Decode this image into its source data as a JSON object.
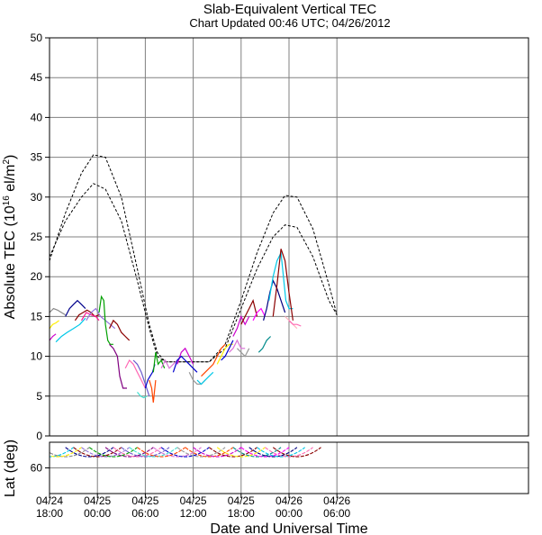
{
  "chart_data": {
    "type": "line",
    "title": "Slab-Equivalent Vertical TEC",
    "subtitle": "Chart Updated 00:46 UTC; 04/26/2012",
    "xlabel": "Date and Universal Time",
    "ylabel_main": "Absolute TEC (10",
    "ylabel_exp": "16",
    "ylabel_unit": " el/m",
    "ylabel_sq": "2",
    "ylabel_close": ")",
    "ylabel_lat": "Lat (deg)",
    "x_unit": "hours since 04/24 18:00",
    "xlim": [
      0,
      60
    ],
    "ylim": [
      0,
      50
    ],
    "yticks": [
      0,
      5,
      10,
      15,
      20,
      25,
      30,
      35,
      40,
      45,
      50
    ],
    "xticks": [
      {
        "x": 0,
        "date": "04/24",
        "time": "18:00"
      },
      {
        "x": 6,
        "date": "04/25",
        "time": "00:00"
      },
      {
        "x": 12,
        "date": "04/25",
        "time": "06:00"
      },
      {
        "x": 18,
        "date": "04/25",
        "time": "12:00"
      },
      {
        "x": 24,
        "date": "04/25",
        "time": "18:00"
      },
      {
        "x": 30,
        "date": "04/26",
        "time": "00:00"
      },
      {
        "x": 36,
        "date": "04/26",
        "time": "06:00"
      }
    ],
    "lat_ylim": [
      70,
      50
    ],
    "lat_yticks": [
      60
    ],
    "grid": true,
    "model_curves": [
      {
        "style": "dashed",
        "x": [
          0,
          2,
          4,
          5.5,
          7,
          9,
          11,
          12.5,
          13.5,
          14.5,
          16,
          18,
          19.5,
          20,
          22,
          24,
          26,
          28,
          29.5,
          31,
          33,
          35,
          36
        ],
        "y": [
          22,
          28,
          33,
          35.3,
          35,
          30,
          21,
          14,
          10.5,
          9.3,
          9.3,
          9.3,
          9.3,
          9.3,
          11.5,
          17,
          23,
          28,
          30.2,
          30,
          26,
          19,
          15.2
        ]
      },
      {
        "style": "dashed",
        "x": [
          0,
          2,
          4,
          5.5,
          7,
          9,
          11,
          12.5,
          13.5,
          14.5,
          16,
          18,
          19.5,
          20,
          22,
          24,
          26,
          28,
          29.5,
          31,
          33,
          35,
          36
        ],
        "y": [
          22.5,
          27,
          30,
          31.7,
          31,
          27,
          19.5,
          13.5,
          10,
          9.3,
          9.3,
          9.3,
          9.3,
          9.3,
          11,
          16,
          21,
          25,
          26.5,
          26.2,
          22.5,
          17,
          15.2
        ]
      }
    ],
    "series": [
      {
        "color": "#888888",
        "x": [
          0,
          0.5,
          1,
          1.5,
          2
        ],
        "y": [
          15.5,
          16,
          15.8,
          15.5,
          15.2
        ]
      },
      {
        "color": "#ffee00",
        "x": [
          0,
          0.4,
          0.8,
          1.2
        ],
        "y": [
          13.5,
          14,
          14.2,
          14.5
        ]
      },
      {
        "color": "#cc00cc",
        "x": [
          0,
          0.4,
          0.8
        ],
        "y": [
          12,
          12.5,
          12.8
        ]
      },
      {
        "color": "#00c8e8",
        "x": [
          0.8,
          1.5,
          2.2,
          3,
          3.8,
          4.5
        ],
        "y": [
          11.8,
          12.5,
          13,
          13.5,
          14,
          14.8
        ]
      },
      {
        "color": "#00008b",
        "x": [
          2,
          2.5,
          3,
          3.5,
          4,
          4.5
        ],
        "y": [
          15,
          16,
          16.5,
          17,
          16.5,
          16
        ]
      },
      {
        "color": "#8b0000",
        "x": [
          3.2,
          3.7,
          4.2,
          4.7,
          5.2,
          5.7,
          6.2
        ],
        "y": [
          14.5,
          15.2,
          15.5,
          15.8,
          15.5,
          15,
          15.2
        ]
      },
      {
        "color": "#ff1493",
        "x": [
          4,
          4.6,
          5.2,
          5.8,
          6.2
        ],
        "y": [
          14.5,
          15.5,
          15.2,
          15,
          14.5
        ]
      },
      {
        "color": "#9370db",
        "x": [
          4.6,
          5.2,
          5.8,
          6.4,
          7,
          7.6,
          8.2
        ],
        "y": [
          14.5,
          15.5,
          16,
          15,
          14.5,
          14,
          13.5
        ]
      },
      {
        "color": "#00a000",
        "x": [
          6.2,
          6.5,
          6.8,
          7,
          7.3,
          7.6,
          8
        ],
        "y": [
          15.5,
          17.5,
          17,
          14,
          12,
          11.5,
          11.5
        ]
      },
      {
        "color": "#8b0000",
        "x": [
          7.5,
          8,
          8.5,
          9,
          9.5,
          10
        ],
        "y": [
          13.5,
          14.5,
          14,
          13,
          12.5,
          12
        ]
      },
      {
        "color": "#800080",
        "x": [
          7.5,
          8,
          8.5,
          8.8,
          9.2,
          9.7
        ],
        "y": [
          11.5,
          11,
          10,
          7.5,
          6,
          6
        ]
      },
      {
        "color": "#ff69b4",
        "x": [
          9.5,
          10,
          10.5,
          11,
          11.5,
          12
        ],
        "y": [
          8.5,
          9.5,
          9,
          8,
          7,
          6
        ]
      },
      {
        "color": "#6a5acd",
        "x": [
          10.5,
          11,
          11.5,
          12,
          12.5
        ],
        "y": [
          9.5,
          9,
          8,
          6.5,
          5
        ]
      },
      {
        "color": "#40e0d0",
        "x": [
          11,
          11.4,
          11.8,
          12.2
        ],
        "y": [
          5.5,
          5,
          4.8,
          5
        ]
      },
      {
        "color": "#0000cd",
        "x": [
          12,
          12.3,
          12.6,
          12.9,
          13.2
        ],
        "y": [
          6,
          7,
          7.5,
          8,
          9
        ]
      },
      {
        "color": "#ff4500",
        "x": [
          12.5,
          12.8,
          13,
          13.3
        ],
        "y": [
          7,
          6,
          4.2,
          7
        ]
      },
      {
        "color": "#00a000",
        "x": [
          13,
          13.3,
          13.6,
          14,
          14.4
        ],
        "y": [
          8,
          10.5,
          9,
          9.5,
          8.5
        ]
      },
      {
        "color": "#da70d6",
        "x": [
          14,
          14.5,
          15,
          15.5,
          16
        ],
        "y": [
          8.5,
          9.5,
          8.5,
          9,
          9.5
        ]
      },
      {
        "color": "#cc00cc",
        "x": [
          16,
          16.5,
          17,
          17.5,
          18
        ],
        "y": [
          9,
          10.5,
          11,
          10,
          9
        ]
      },
      {
        "color": "#0000cd",
        "x": [
          15.5,
          16,
          16.5,
          17,
          17.5,
          18,
          18.5
        ],
        "y": [
          8,
          9.5,
          10,
          9.5,
          9,
          8.5,
          8
        ]
      },
      {
        "color": "#999999",
        "x": [
          17.5,
          18,
          18.5,
          19,
          19.5
        ],
        "y": [
          8,
          7,
          6.5,
          6.5,
          7
        ]
      },
      {
        "color": "#00c8e8",
        "x": [
          18.5,
          19,
          19.5,
          20,
          20.5
        ],
        "y": [
          7,
          6.5,
          7,
          7.5,
          8
        ]
      },
      {
        "color": "#ff4500",
        "x": [
          19,
          19.5,
          20,
          20.5,
          21,
          21.5,
          22
        ],
        "y": [
          7.5,
          8,
          8.5,
          9,
          10,
          11,
          11.5
        ]
      },
      {
        "color": "#ffee00",
        "x": [
          21,
          21.5,
          22,
          22.5,
          23
        ],
        "y": [
          9,
          10,
          11,
          11.5,
          11.5
        ]
      },
      {
        "color": "#0000cd",
        "x": [
          21.5,
          22,
          22.5,
          23
        ],
        "y": [
          9.5,
          10,
          11,
          12
        ]
      },
      {
        "color": "#da70d6",
        "x": [
          22.5,
          23,
          23.5,
          24,
          24.5
        ],
        "y": [
          10.5,
          11,
          12,
          11,
          11
        ]
      },
      {
        "color": "#999999",
        "x": [
          23.5,
          24,
          24.5,
          25
        ],
        "y": [
          11,
          10.5,
          10,
          11
        ]
      },
      {
        "color": "#cc00cc",
        "x": [
          23,
          23.5,
          24,
          24.5,
          25
        ],
        "y": [
          12.5,
          13.5,
          15,
          14,
          15
        ]
      },
      {
        "color": "#8b0000",
        "x": [
          24,
          24.5,
          25,
          25.5,
          26
        ],
        "y": [
          14,
          15,
          16,
          17,
          15
        ]
      },
      {
        "color": "#ff00ff",
        "x": [
          25.5,
          26,
          26.5,
          27
        ],
        "y": [
          14.5,
          15.5,
          16,
          15
        ]
      },
      {
        "color": "#008b8b",
        "x": [
          26.2,
          26.7,
          27.2,
          27.7
        ],
        "y": [
          10.5,
          11,
          12,
          12.5
        ]
      },
      {
        "color": "#000080",
        "x": [
          26.8,
          27.2,
          27.6,
          28,
          28.5,
          29,
          29.5
        ],
        "y": [
          14.5,
          16,
          18,
          19.5,
          18.5,
          17,
          15.5
        ]
      },
      {
        "color": "#00c8e8",
        "x": [
          27.5,
          28,
          28.5,
          29,
          29.3,
          29.6,
          30,
          30.5
        ],
        "y": [
          17,
          20,
          22,
          23,
          20,
          17,
          16,
          16
        ]
      },
      {
        "color": "#8b0000",
        "x": [
          28,
          28.5,
          29,
          29.5,
          30,
          30.5
        ],
        "y": [
          15,
          19,
          23.5,
          22,
          18,
          14.5
        ]
      },
      {
        "color": "#ffb6c1",
        "x": [
          29.5,
          30,
          30.5,
          31
        ],
        "y": [
          15,
          14.5,
          14,
          13.5
        ]
      },
      {
        "color": "#ff69b4",
        "x": [
          30,
          30.5,
          31,
          31.5
        ],
        "y": [
          14.5,
          14,
          14,
          13.8
        ]
      }
    ],
    "lat_arcs": [
      {
        "color": "#00c8e8",
        "x": [
          -3,
          3
        ]
      },
      {
        "color": "#888888",
        "x": [
          -1,
          5
        ]
      },
      {
        "color": "#ffee00",
        "x": [
          -2,
          4
        ]
      },
      {
        "color": "#00008b",
        "x": [
          2,
          8
        ]
      },
      {
        "color": "#8b0000",
        "x": [
          3,
          9
        ]
      },
      {
        "color": "#9370db",
        "x": [
          4,
          10
        ]
      },
      {
        "color": "#00a000",
        "x": [
          5,
          11
        ]
      },
      {
        "color": "#800080",
        "x": [
          7,
          13
        ]
      },
      {
        "color": "#ff69b4",
        "x": [
          8,
          14
        ]
      },
      {
        "color": "#6a5acd",
        "x": [
          9,
          15
        ]
      },
      {
        "color": "#40e0d0",
        "x": [
          10,
          16
        ]
      },
      {
        "color": "#ff4500",
        "x": [
          11,
          17
        ]
      },
      {
        "color": "#da70d6",
        "x": [
          13,
          19
        ]
      },
      {
        "color": "#0000cd",
        "x": [
          14,
          20
        ]
      },
      {
        "color": "#999999",
        "x": [
          16,
          22
        ]
      },
      {
        "color": "#ff4500",
        "x": [
          17,
          23
        ]
      },
      {
        "color": "#cc00cc",
        "x": [
          18,
          24
        ]
      },
      {
        "color": "#8b0000",
        "x": [
          20,
          26
        ]
      },
      {
        "color": "#ffee00",
        "x": [
          21,
          27
        ]
      },
      {
        "color": "#008b8b",
        "x": [
          23,
          29
        ]
      },
      {
        "color": "#ff00ff",
        "x": [
          24,
          30
        ]
      },
      {
        "color": "#000080",
        "x": [
          25,
          31
        ]
      },
      {
        "color": "#00c8e8",
        "x": [
          26,
          32
        ]
      },
      {
        "color": "#ff69b4",
        "x": [
          27,
          33
        ]
      },
      {
        "color": "#8b0000",
        "x": [
          28,
          34
        ]
      }
    ]
  }
}
